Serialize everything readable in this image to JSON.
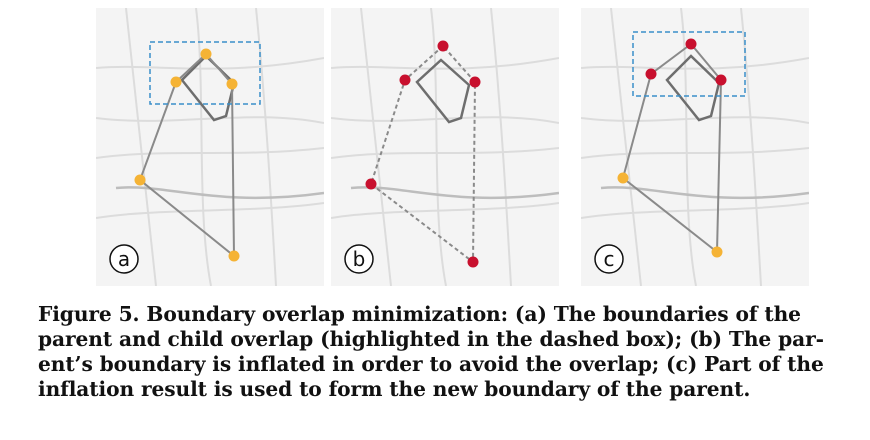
{
  "panels": [
    {
      "label": "a",
      "description_state": "overlap"
    },
    {
      "label": "b",
      "description_state": "inflated"
    },
    {
      "label": "c",
      "description_state": "new-boundary"
    }
  ],
  "colors": {
    "child_boundary": "#6e6e6e",
    "parent_vertex_a_c": "#f5b335",
    "parent_vertex_b": "#c8102e",
    "dashed_box": "#3a8fc9",
    "map_background": "#f4f4f4",
    "map_roads": "#d9d9d9"
  },
  "caption": {
    "lines": [
      "Figure 5.  Boundary overlap minimization: (a) The boundaries of the",
      "parent and child overlap (highlighted in the dashed box); (b) The par-",
      "ent’s boundary is inflated in order to avoid the overlap; (c) Part of the",
      "inflation result is used to form the new boundary of the parent."
    ]
  }
}
